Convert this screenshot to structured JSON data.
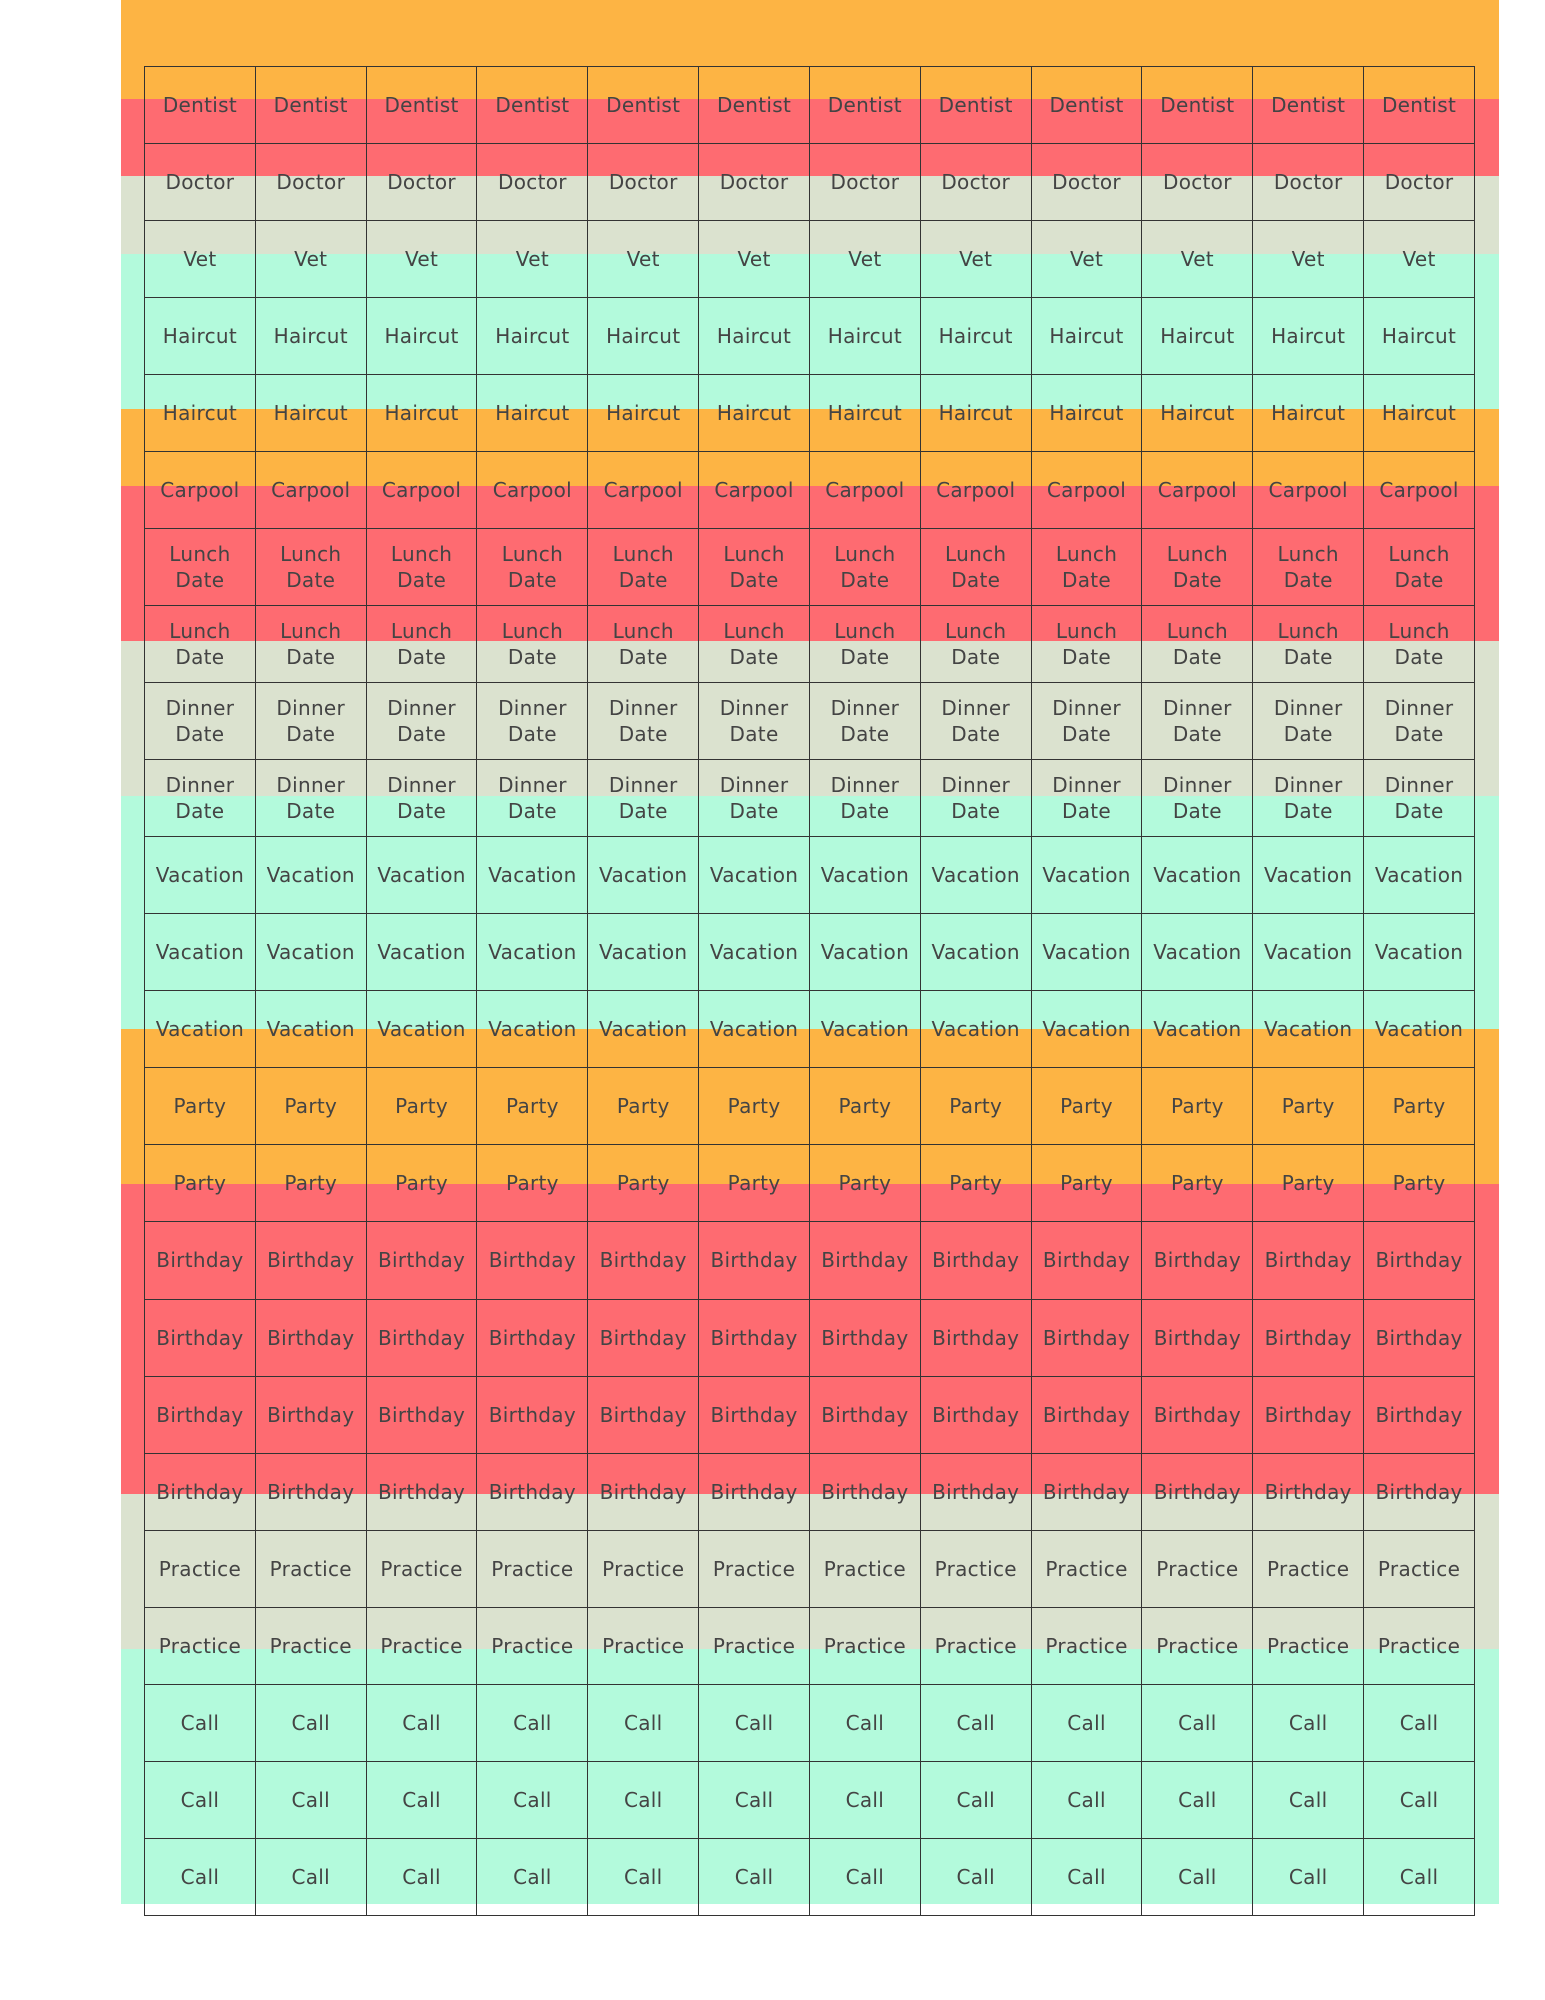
{
  "rows": [
    {
      "color": "#fdb444",
      "cells": [
        "Dentist",
        "Dentist",
        "Dentist",
        "Dentist",
        "Dentist",
        "Dentist",
        "Dentist",
        "Dentist",
        "Dentist",
        "Dentist",
        "Dentist",
        "Dentist"
      ]
    },
    {
      "color": "#fe6b71",
      "cells": [
        "Doctor",
        "Doctor",
        "Doctor",
        "Doctor",
        "Doctor",
        "Doctor",
        "Doctor",
        "Doctor",
        "Doctor",
        "Doctor",
        "Doctor",
        "Doctor"
      ]
    },
    {
      "color": "#dbe2cf",
      "cells": [
        "Vet",
        "Vet",
        "Vet",
        "Vet",
        "Vet",
        "Vet",
        "Vet",
        "Vet",
        "Vet",
        "Vet",
        "Vet",
        "Vet"
      ]
    },
    {
      "color": "#b3fadc",
      "cells": [
        "Haircut",
        "Haircut",
        "Haircut",
        "Haircut",
        "Haircut",
        "Haircut",
        "Haircut",
        "Haircut",
        "Haircut",
        "Haircut",
        "Haircut",
        "Haircut"
      ]
    },
    {
      "color": "#b3fadc",
      "cells": [
        "Haircut",
        "Haircut",
        "Haircut",
        "Haircut",
        "Haircut",
        "Haircut",
        "Haircut",
        "Haircut",
        "Haircut",
        "Haircut",
        "Haircut",
        "Haircut"
      ]
    },
    {
      "color": "#fdb444",
      "cells": [
        "Carpool",
        "Carpool",
        "Carpool",
        "Carpool",
        "Carpool",
        "Carpool",
        "Carpool",
        "Carpool",
        "Carpool",
        "Carpool",
        "Carpool",
        "Carpool"
      ]
    },
    {
      "color": "#fe6b71",
      "cells": [
        "Lunch Date",
        "Lunch Date",
        "Lunch Date",
        "Lunch Date",
        "Lunch Date",
        "Lunch Date",
        "Lunch Date",
        "Lunch Date",
        "Lunch Date",
        "Lunch Date",
        "Lunch Date",
        "Lunch Date"
      ]
    },
    {
      "color": "#fe6b71",
      "cells": [
        "Lunch Date",
        "Lunch Date",
        "Lunch Date",
        "Lunch Date",
        "Lunch Date",
        "Lunch Date",
        "Lunch Date",
        "Lunch Date",
        "Lunch Date",
        "Lunch Date",
        "Lunch Date",
        "Lunch Date"
      ]
    },
    {
      "color": "#dbe2cf",
      "cells": [
        "Dinner Date",
        "Dinner Date",
        "Dinner Date",
        "Dinner Date",
        "Dinner Date",
        "Dinner Date",
        "Dinner Date",
        "Dinner Date",
        "Dinner Date",
        "Dinner Date",
        "Dinner Date",
        "Dinner Date"
      ]
    },
    {
      "color": "#dbe2cf",
      "cells": [
        "Dinner Date",
        "Dinner Date",
        "Dinner Date",
        "Dinner Date",
        "Dinner Date",
        "Dinner Date",
        "Dinner Date",
        "Dinner Date",
        "Dinner Date",
        "Dinner Date",
        "Dinner Date",
        "Dinner Date"
      ]
    },
    {
      "color": "#b3fadc",
      "cells": [
        "Vacation",
        "Vacation",
        "Vacation",
        "Vacation",
        "Vacation",
        "Vacation",
        "Vacation",
        "Vacation",
        "Vacation",
        "Vacation",
        "Vacation",
        "Vacation"
      ]
    },
    {
      "color": "#b3fadc",
      "cells": [
        "Vacation",
        "Vacation",
        "Vacation",
        "Vacation",
        "Vacation",
        "Vacation",
        "Vacation",
        "Vacation",
        "Vacation",
        "Vacation",
        "Vacation",
        "Vacation"
      ]
    },
    {
      "color": "#b3fadc",
      "cells": [
        "Vacation",
        "Vacation",
        "Vacation",
        "Vacation",
        "Vacation",
        "Vacation",
        "Vacation",
        "Vacation",
        "Vacation",
        "Vacation",
        "Vacation",
        "Vacation"
      ]
    },
    {
      "color": "#fdb444",
      "cells": [
        "Party",
        "Party",
        "Party",
        "Party",
        "Party",
        "Party",
        "Party",
        "Party",
        "Party",
        "Party",
        "Party",
        "Party"
      ]
    },
    {
      "color": "#fdb444",
      "cells": [
        "Party",
        "Party",
        "Party",
        "Party",
        "Party",
        "Party",
        "Party",
        "Party",
        "Party",
        "Party",
        "Party",
        "Party"
      ]
    },
    {
      "color": "#fe6b71",
      "cells": [
        "Birthday",
        "Birthday",
        "Birthday",
        "Birthday",
        "Birthday",
        "Birthday",
        "Birthday",
        "Birthday",
        "Birthday",
        "Birthday",
        "Birthday",
        "Birthday"
      ]
    },
    {
      "color": "#fe6b71",
      "cells": [
        "Birthday",
        "Birthday",
        "Birthday",
        "Birthday",
        "Birthday",
        "Birthday",
        "Birthday",
        "Birthday",
        "Birthday",
        "Birthday",
        "Birthday",
        "Birthday"
      ]
    },
    {
      "color": "#fe6b71",
      "cells": [
        "Birthday",
        "Birthday",
        "Birthday",
        "Birthday",
        "Birthday",
        "Birthday",
        "Birthday",
        "Birthday",
        "Birthday",
        "Birthday",
        "Birthday",
        "Birthday"
      ]
    },
    {
      "color": "#fe6b71",
      "cells": [
        "Birthday",
        "Birthday",
        "Birthday",
        "Birthday",
        "Birthday",
        "Birthday",
        "Birthday",
        "Birthday",
        "Birthday",
        "Birthday",
        "Birthday",
        "Birthday"
      ]
    },
    {
      "color": "#dbe2cf",
      "cells": [
        "Practice",
        "Practice",
        "Practice",
        "Practice",
        "Practice",
        "Practice",
        "Practice",
        "Practice",
        "Practice",
        "Practice",
        "Practice",
        "Practice"
      ]
    },
    {
      "color": "#dbe2cf",
      "cells": [
        "Practice",
        "Practice",
        "Practice",
        "Practice",
        "Practice",
        "Practice",
        "Practice",
        "Practice",
        "Practice",
        "Practice",
        "Practice",
        "Practice"
      ]
    },
    {
      "color": "#b3fadc",
      "cells": [
        "Call",
        "Call",
        "Call",
        "Call",
        "Call",
        "Call",
        "Call",
        "Call",
        "Call",
        "Call",
        "Call",
        "Call"
      ]
    },
    {
      "color": "#b3fadc",
      "cells": [
        "Call",
        "Call",
        "Call",
        "Call",
        "Call",
        "Call",
        "Call",
        "Call",
        "Call",
        "Call",
        "Call",
        "Call"
      ]
    },
    {
      "color": "#b3fadc",
      "cells": [
        "Call",
        "Call",
        "Call",
        "Call",
        "Call",
        "Call",
        "Call",
        "Call",
        "Call",
        "Call",
        "Call",
        "Call"
      ]
    }
  ]
}
